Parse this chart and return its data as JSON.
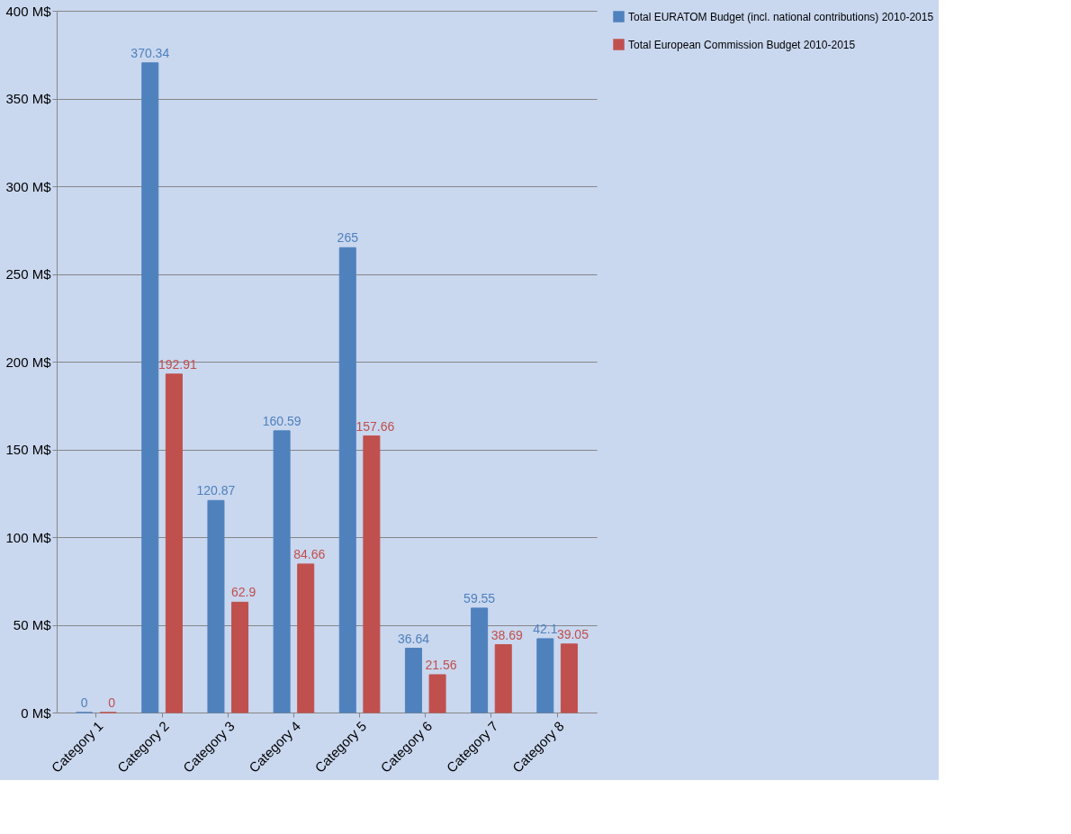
{
  "chart_data": {
    "type": "bar",
    "categories": [
      "Category 1",
      "Category 2",
      "Category 3",
      "Category 4",
      "Category 5",
      "Category 6",
      "Category 7",
      "Category 8"
    ],
    "series": [
      {
        "name": "Total EURATOM Budget (incl. national contributions) 2010-2015",
        "color": "#4f81bd",
        "values": [
          0,
          370.34,
          120.87,
          160.59,
          265,
          36.64,
          59.55,
          42.1
        ]
      },
      {
        "name": "Total European Commission Budget 2010-2015",
        "color": "#c0504d",
        "values": [
          0,
          192.91,
          62.9,
          84.66,
          157.66,
          21.56,
          38.69,
          39.05
        ]
      }
    ],
    "ylim": [
      0,
      400
    ],
    "yticks": [
      {
        "value": 0,
        "label": "0 M$"
      },
      {
        "value": 50,
        "label": "50 M$"
      },
      {
        "value": 100,
        "label": "100 M$"
      },
      {
        "value": 150,
        "label": "150 M$"
      },
      {
        "value": 200,
        "label": "200 M$"
      },
      {
        "value": 250,
        "label": "250 M$"
      },
      {
        "value": 300,
        "label": "300 M$"
      },
      {
        "value": 350,
        "label": "350 M$"
      },
      {
        "value": 400,
        "label": "400 M$"
      }
    ],
    "grid": "y",
    "legend": "right",
    "data_labels": true
  }
}
